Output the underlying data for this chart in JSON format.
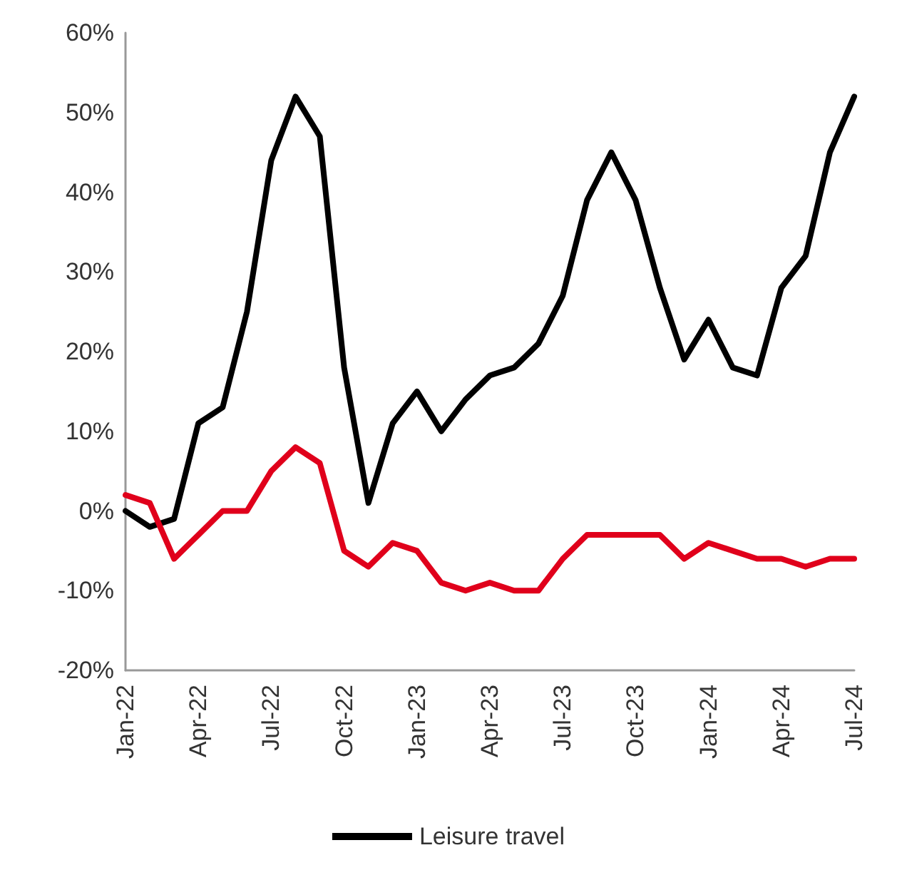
{
  "chart_data": {
    "type": "line",
    "categories": [
      "Jan-22",
      null,
      null,
      "Apr-22",
      null,
      null,
      "Jul-22",
      null,
      null,
      "Oct-22",
      null,
      null,
      "Jan-23",
      null,
      null,
      "Apr-23",
      null,
      null,
      "Jul-23",
      null,
      null,
      "Oct-23",
      null,
      null,
      "Jan-24",
      null,
      null,
      "Apr-24",
      null,
      null,
      "Jul-24"
    ],
    "series": [
      {
        "name": "Leisure travel",
        "color": "#000000",
        "values": [
          0,
          -2,
          -1,
          11,
          13,
          25,
          44,
          52,
          47,
          18,
          1,
          11,
          15,
          10,
          14,
          17,
          18,
          21,
          27,
          39,
          45,
          39,
          28,
          19,
          24,
          18,
          17,
          28,
          32,
          45,
          52
        ]
      },
      {
        "color": "#e0001b",
        "values": [
          2,
          1,
          -6,
          -3,
          0,
          0,
          5,
          8,
          6,
          -5,
          -7,
          -4,
          -5,
          -9,
          -10,
          -9,
          -10,
          -10,
          -6,
          -3,
          -3,
          -3,
          -3,
          -6,
          -4,
          -5,
          -6,
          -6,
          -7,
          -6,
          -6
        ]
      }
    ],
    "ylim": [
      -20,
      60
    ],
    "yticks": [
      {
        "value": -20,
        "label": "-20%"
      },
      {
        "value": -10,
        "label": "-10%"
      },
      {
        "value": 0,
        "label": "0%"
      },
      {
        "value": 10,
        "label": "10%"
      },
      {
        "value": 20,
        "label": "20%"
      },
      {
        "value": 30,
        "label": "30%"
      },
      {
        "value": 40,
        "label": "40%"
      },
      {
        "value": 50,
        "label": "50%"
      },
      {
        "value": 60,
        "label": "60%"
      }
    ],
    "grid": false,
    "legend": "bottom",
    "marker": "none",
    "line_style": "solid"
  }
}
